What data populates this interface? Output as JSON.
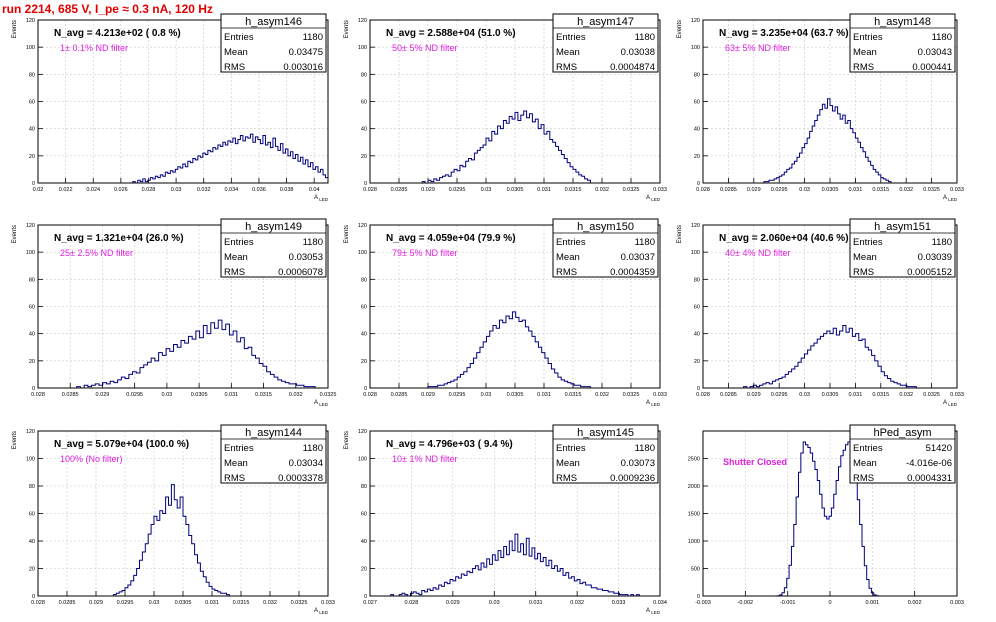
{
  "page": {
    "title": "run 2214,   685 V, I_pe ≈ 0.3 nA, 120 Hz",
    "colors": {
      "title": "#e00000",
      "hist": "#00007f",
      "filter_note": "#e020e0",
      "grid": "#c8c8c8"
    }
  },
  "stats_labels": {
    "entries": "Entries",
    "mean": "Mean",
    "rms": "RMS"
  },
  "chart_data": [
    {
      "type": "bar",
      "name": "h_asym146",
      "title": "N_avg = 4.213e+02 ( 0.8 %)",
      "note": "1± 0.1% ND filter",
      "ylabel": "Events",
      "xlabel": "A_LED",
      "xlim": [
        0.02,
        0.041
      ],
      "ylim": [
        0,
        120
      ],
      "xticks": [
        "0.02",
        "0.022",
        "0.024",
        "0.026",
        "0.028",
        "0.03",
        "0.032",
        "0.034",
        "0.036",
        "0.038",
        "0.04"
      ],
      "xtick_vals": [
        0.02,
        0.022,
        0.024,
        0.026,
        0.028,
        0.03,
        0.032,
        0.034,
        0.036,
        0.038,
        0.04
      ],
      "yticks": [
        0,
        20,
        40,
        60,
        80,
        100,
        120
      ],
      "stats": {
        "entries": "1180",
        "mean": "0.03475",
        "rms": "0.003016"
      },
      "bins": {
        "lo": 0.0265,
        "hi": 0.041,
        "values": [
          0,
          0,
          1,
          0,
          2,
          1,
          3,
          1,
          2,
          4,
          3,
          5,
          4,
          6,
          5,
          8,
          7,
          9,
          8,
          10,
          12,
          11,
          14,
          12,
          16,
          15,
          18,
          17,
          20,
          19,
          22,
          21,
          24,
          23,
          26,
          25,
          28,
          27,
          30,
          28,
          31,
          30,
          33,
          29,
          32,
          35,
          31,
          34,
          33,
          36,
          30,
          34,
          32,
          29,
          35,
          28,
          30,
          26,
          33,
          27,
          24,
          29,
          22,
          25,
          20,
          23,
          18,
          21,
          16,
          19,
          14,
          17,
          12,
          15,
          10,
          12,
          8,
          10,
          6,
          4
        ]
      }
    },
    {
      "type": "bar",
      "name": "h_asym147",
      "title": "N_avg = 2.588e+04 (51.0 %)",
      "note": "50± 5% ND filter",
      "ylabel": "Events",
      "xlabel": "A_LED",
      "xlim": [
        0.028,
        0.033
      ],
      "ylim": [
        0,
        120
      ],
      "xticks": [
        "0.028",
        "0.0285",
        "0.029",
        "0.0295",
        "0.03",
        "0.0305",
        "0.031",
        "0.0315",
        "0.032",
        "0.0325",
        "0.033"
      ],
      "xtick_vals": [
        0.028,
        0.0285,
        0.029,
        0.0295,
        0.03,
        0.0305,
        0.031,
        0.0315,
        0.032,
        0.0325,
        0.033
      ],
      "yticks": [
        0,
        20,
        40,
        60,
        80,
        100,
        120
      ],
      "stats": {
        "entries": "1180",
        "mean": "0.03038",
        "rms": "0.0004874"
      },
      "bins": {
        "lo": 0.0289,
        "hi": 0.0318,
        "values": [
          1,
          0,
          2,
          1,
          3,
          2,
          4,
          5,
          6,
          5,
          8,
          10,
          9,
          13,
          12,
          16,
          18,
          17,
          22,
          24,
          26,
          28,
          33,
          31,
          38,
          36,
          42,
          40,
          46,
          44,
          49,
          47,
          52,
          46,
          50,
          53,
          48,
          51,
          45,
          47,
          40,
          43,
          36,
          38,
          32,
          30,
          27,
          24,
          21,
          18,
          15,
          12,
          10,
          8,
          6,
          5,
          3,
          2
        ]
      }
    },
    {
      "type": "bar",
      "name": "h_asym148",
      "title": "N_avg = 3.235e+04 (63.7 %)",
      "note": "63± 5% ND filter",
      "ylabel": "Events",
      "xlabel": "A_LED",
      "xlim": [
        0.028,
        0.033
      ],
      "ylim": [
        0,
        120
      ],
      "xticks": [
        "0.028",
        "0.0285",
        "0.029",
        "0.0295",
        "0.03",
        "0.0305",
        "0.031",
        "0.0315",
        "0.032",
        "0.0325",
        "0.033"
      ],
      "xtick_vals": [
        0.028,
        0.0285,
        0.029,
        0.0295,
        0.03,
        0.0305,
        0.031,
        0.0315,
        0.032,
        0.0325,
        0.033
      ],
      "yticks": [
        0,
        20,
        40,
        60,
        80,
        100,
        120
      ],
      "stats": {
        "entries": "1180",
        "mean": "0.03043",
        "rms": "0.000441"
      },
      "bins": {
        "lo": 0.0292,
        "hi": 0.0317,
        "values": [
          1,
          1,
          2,
          2,
          3,
          4,
          5,
          6,
          8,
          10,
          11,
          14,
          16,
          19,
          22,
          26,
          29,
          33,
          38,
          42,
          46,
          50,
          54,
          58,
          55,
          62,
          57,
          53,
          56,
          51,
          47,
          50,
          44,
          46,
          40,
          37,
          33,
          30,
          26,
          23,
          19,
          16,
          13,
          10,
          8,
          6,
          4,
          3,
          2,
          1
        ]
      }
    },
    {
      "type": "bar",
      "name": "h_asym149",
      "title": "N_avg = 1.321e+04 (26.0 %)",
      "note": "25± 2.5% ND filter",
      "ylabel": "Events",
      "xlabel": "A_LED",
      "xlim": [
        0.028,
        0.0325
      ],
      "ylim": [
        0,
        120
      ],
      "xticks": [
        "0.028",
        "0.0285",
        "0.029",
        "0.0295",
        "0.03",
        "0.0305",
        "0.031",
        "0.0315",
        "0.032",
        "0.0325"
      ],
      "xtick_vals": [
        0.028,
        0.0285,
        0.029,
        0.0295,
        0.03,
        0.0305,
        0.031,
        0.0315,
        0.032,
        0.0325
      ],
      "yticks": [
        0,
        20,
        40,
        60,
        80,
        100,
        120
      ],
      "stats": {
        "entries": "1180",
        "mean": "0.03053",
        "rms": "0.0006078"
      },
      "bins": {
        "lo": 0.0286,
        "hi": 0.0323,
        "values": [
          1,
          0,
          2,
          1,
          2,
          3,
          2,
          4,
          3,
          5,
          4,
          6,
          8,
          7,
          10,
          12,
          11,
          15,
          17,
          19,
          22,
          20,
          26,
          24,
          29,
          27,
          32,
          30,
          35,
          33,
          38,
          36,
          42,
          37,
          46,
          40,
          48,
          44,
          50,
          43,
          47,
          39,
          42,
          34,
          37,
          29,
          30,
          24,
          22,
          18,
          16,
          12,
          10,
          8,
          6,
          5,
          4,
          3,
          3,
          2,
          2,
          1,
          1,
          1
        ]
      }
    },
    {
      "type": "bar",
      "name": "h_asym150",
      "title": "N_avg = 4.059e+04 (79.9 %)",
      "note": "79± 5% ND filter",
      "ylabel": "Events",
      "xlabel": "A_LED",
      "xlim": [
        0.028,
        0.033
      ],
      "ylim": [
        0,
        120
      ],
      "xticks": [
        "0.028",
        "0.0285",
        "0.029",
        "0.0295",
        "0.03",
        "0.0305",
        "0.031",
        "0.0315",
        "0.032",
        "0.0325",
        "0.033"
      ],
      "xtick_vals": [
        0.028,
        0.0285,
        0.029,
        0.0295,
        0.03,
        0.0305,
        0.031,
        0.0315,
        0.032,
        0.0325,
        0.033
      ],
      "yticks": [
        0,
        20,
        40,
        60,
        80,
        100,
        120
      ],
      "stats": {
        "entries": "1180",
        "mean": "0.03037",
        "rms": "0.0004359"
      },
      "bins": {
        "lo": 0.029,
        "hi": 0.0318,
        "values": [
          1,
          1,
          1,
          2,
          2,
          3,
          4,
          5,
          6,
          8,
          10,
          12,
          15,
          18,
          22,
          26,
          30,
          34,
          38,
          42,
          46,
          44,
          50,
          48,
          53,
          51,
          56,
          52,
          49,
          50,
          45,
          42,
          38,
          34,
          30,
          26,
          22,
          18,
          14,
          11,
          8,
          6,
          5,
          4,
          3,
          2,
          2,
          1,
          1,
          1
        ]
      }
    },
    {
      "type": "bar",
      "name": "h_asym151",
      "title": "N_avg = 2.060e+04 (40.6 %)",
      "note": "40± 4% ND filter",
      "ylabel": "Events",
      "xlabel": "A_LED",
      "xlim": [
        0.028,
        0.033
      ],
      "ylim": [
        0,
        120
      ],
      "xticks": [
        "0.028",
        "0.0285",
        "0.029",
        "0.0295",
        "0.03",
        "0.0305",
        "0.031",
        "0.0315",
        "0.032",
        "0.0325",
        "0.033"
      ],
      "xtick_vals": [
        0.028,
        0.0285,
        0.029,
        0.0295,
        0.03,
        0.0305,
        0.031,
        0.0315,
        0.032,
        0.0325,
        0.033
      ],
      "yticks": [
        0,
        20,
        40,
        60,
        80,
        100,
        120
      ],
      "stats": {
        "entries": "1180",
        "mean": "0.03039",
        "rms": "0.0005152"
      },
      "bins": {
        "lo": 0.0288,
        "hi": 0.0322,
        "values": [
          1,
          0,
          1,
          2,
          1,
          2,
          3,
          4,
          3,
          5,
          6,
          7,
          8,
          10,
          12,
          14,
          16,
          19,
          22,
          25,
          28,
          31,
          33,
          36,
          38,
          40,
          42,
          40,
          44,
          39,
          42,
          46,
          41,
          44,
          38,
          40,
          35,
          36,
          30,
          28,
          24,
          20,
          16,
          12,
          9,
          7,
          5,
          4,
          3,
          2,
          2,
          1,
          1,
          1
        ]
      }
    },
    {
      "type": "bar",
      "name": "h_asym144",
      "title": "N_avg = 5.079e+04 (100.0 %)",
      "note": "100% (No filter)",
      "ylabel": "Events",
      "xlabel": "A_LED",
      "xlim": [
        0.028,
        0.033
      ],
      "ylim": [
        0,
        120
      ],
      "xticks": [
        "0.028",
        "0.0285",
        "0.029",
        "0.0295",
        "0.03",
        "0.0305",
        "0.031",
        "0.0315",
        "0.032",
        "0.0325",
        "0.033"
      ],
      "xtick_vals": [
        0.028,
        0.0285,
        0.029,
        0.0295,
        0.03,
        0.0305,
        0.031,
        0.0315,
        0.032,
        0.0325,
        0.033
      ],
      "yticks": [
        0,
        20,
        40,
        60,
        80,
        100,
        120
      ],
      "stats": {
        "entries": "1180",
        "mean": "0.03034",
        "rms": "0.0003378"
      },
      "bins": {
        "lo": 0.0293,
        "hi": 0.0313,
        "values": [
          1,
          2,
          3,
          4,
          6,
          8,
          11,
          15,
          20,
          26,
          32,
          38,
          45,
          52,
          58,
          55,
          62,
          60,
          72,
          66,
          81,
          70,
          64,
          72,
          58,
          52,
          44,
          38,
          30,
          24,
          18,
          14,
          10,
          7,
          5,
          4,
          3,
          2,
          2,
          1
        ]
      }
    },
    {
      "type": "bar",
      "name": "h_asym145",
      "title": "N_avg = 4.796e+03 ( 9.4 %)",
      "note": "10± 1% ND filter",
      "ylabel": "Events",
      "xlabel": "A_LED",
      "xlim": [
        0.027,
        0.034
      ],
      "ylim": [
        0,
        120
      ],
      "xticks": [
        "0.027",
        "0.028",
        "0.029",
        "0.03",
        "0.031",
        "0.032",
        "0.033",
        "0.034"
      ],
      "xtick_vals": [
        0.027,
        0.028,
        0.029,
        0.03,
        0.031,
        0.032,
        0.033,
        0.034
      ],
      "yticks": [
        0,
        20,
        40,
        60,
        80,
        100,
        120
      ],
      "stats": {
        "entries": "1180",
        "mean": "0.03073",
        "rms": "0.0009236"
      },
      "bins": {
        "lo": 0.0275,
        "hi": 0.0335,
        "values": [
          1,
          0,
          0,
          1,
          2,
          1,
          0,
          2,
          3,
          2,
          1,
          4,
          3,
          5,
          4,
          6,
          5,
          8,
          7,
          10,
          9,
          12,
          11,
          14,
          13,
          16,
          15,
          18,
          17,
          20,
          22,
          19,
          24,
          21,
          27,
          23,
          30,
          26,
          33,
          28,
          36,
          30,
          40,
          33,
          45,
          32,
          38,
          30,
          42,
          29,
          35,
          27,
          31,
          25,
          28,
          22,
          26,
          20,
          22,
          18,
          20,
          15,
          17,
          13,
          14,
          11,
          12,
          9,
          10,
          8,
          8,
          6,
          6,
          5,
          5,
          4,
          4,
          3,
          3,
          2,
          2,
          1,
          1,
          1,
          0,
          1,
          0,
          1
        ]
      }
    },
    {
      "type": "bar",
      "name": "hPed_asym",
      "title": "",
      "note": "Shutter Closed",
      "ylabel": "",
      "xlabel": "",
      "xlim": [
        -0.003,
        0.003
      ],
      "ylim": [
        0,
        3000
      ],
      "xticks": [
        "-0.003",
        "-0.002",
        "-0.001",
        "0",
        "0.001",
        "0.002",
        "0.003"
      ],
      "xtick_vals": [
        -0.003,
        -0.002,
        -0.001,
        0,
        0.001,
        0.002,
        0.003
      ],
      "yticks": [
        0,
        500,
        1000,
        1500,
        2000,
        2500
      ],
      "stats": {
        "entries": "51420",
        "mean": "-4.016e-06",
        "rms": "0.0004331"
      },
      "bins": {
        "lo": -0.0013,
        "hi": 0.0012,
        "values": [
          0,
          5,
          20,
          60,
          150,
          320,
          560,
          900,
          1300,
          1800,
          2250,
          2600,
          2800,
          2750,
          2700,
          2600,
          2450,
          2300,
          2100,
          1850,
          1600,
          1450,
          1400,
          1450,
          1600,
          1850,
          2100,
          2350,
          2550,
          2650,
          2750,
          2800,
          2700,
          2500,
          2150,
          1750,
          1300,
          900,
          550,
          300,
          140,
          60,
          20,
          5,
          0
        ]
      }
    }
  ]
}
